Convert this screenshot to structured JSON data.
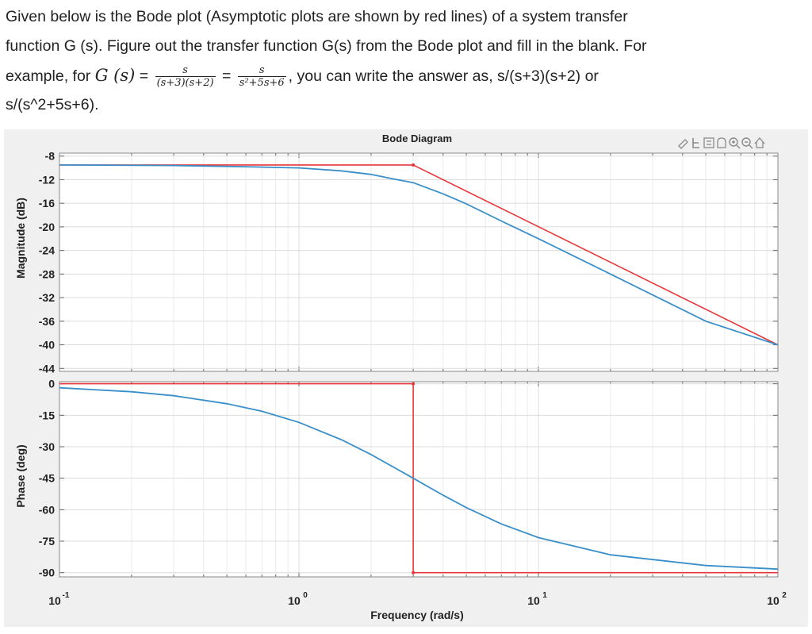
{
  "question": {
    "line1": "Given below is the Bode plot (Asymptotic plots are shown by red lines)  of a system transfer",
    "line2": "function G (s). Figure out the transfer function G(s) from the Bode plot and fill in the blank.  For",
    "line3_prefix": "example, for ",
    "math_G": "G (s)",
    "math_eq": "=",
    "frac1_num": "s",
    "frac1_den": "(s+3)(s+2)",
    "frac2_num": "s",
    "frac2_den": "s²+5s+6",
    "line3_suffix": ", you can write the answer as, s/(s+3)(s+2) or",
    "line4": "s/(s^2+5s+6)."
  },
  "chart_data": {
    "type": "line",
    "title": "Bode Diagram",
    "xlabel": "Frequency (rad/s)",
    "xscale": "log",
    "xlim": [
      0.1,
      100
    ],
    "x_ticks": [
      {
        "base": "10",
        "exp": "-1",
        "value": 0.1
      },
      {
        "base": "10",
        "exp": "0",
        "value": 1
      },
      {
        "base": "10",
        "exp": "1",
        "value": 10
      },
      {
        "base": "10",
        "exp": "2",
        "value": 100
      }
    ],
    "grid": true,
    "toolbar_icons": [
      "brush-icon",
      "data-cursor-icon",
      "legend-icon",
      "pan-icon",
      "zoom-in-icon",
      "zoom-out-icon",
      "home-icon"
    ],
    "magnitude": {
      "ylabel": "Magnitude (dB)",
      "ylim": [
        -44.5,
        -7.5
      ],
      "yticks": [
        "-8",
        "-12",
        "-16",
        "-20",
        "-24",
        "-28",
        "-32",
        "-36",
        "-40",
        "-44"
      ],
      "ytick_values": [
        -8,
        -12,
        -16,
        -20,
        -24,
        -28,
        -32,
        -36,
        -40,
        -44
      ],
      "series": [
        {
          "color": "#e8363a",
          "x": [
            0.1,
            3,
            100
          ],
          "y": [
            -9.5,
            -9.5,
            -40
          ]
        },
        {
          "color": "#3a8fc9",
          "x": [
            0.1,
            0.3,
            0.6,
            1,
            1.5,
            2,
            2.5,
            3,
            4,
            5,
            7,
            10,
            20,
            50,
            100
          ],
          "y": [
            -9.5,
            -9.6,
            -9.8,
            -10.0,
            -10.5,
            -11.1,
            -11.9,
            -12.5,
            -14.4,
            -16.1,
            -19.0,
            -22.0,
            -28.0,
            -36.0,
            -40.0
          ]
        }
      ]
    },
    "phase": {
      "ylabel": "Phase (deg)",
      "ylim": [
        -92,
        1
      ],
      "yticks": [
        "0",
        "-15",
        "-30",
        "-45",
        "-60",
        "-75",
        "-90"
      ],
      "ytick_values": [
        0,
        -15,
        -30,
        -45,
        -60,
        -75,
        -90
      ],
      "series": [
        {
          "color": "#e8363a",
          "x": [
            0.1,
            3,
            3,
            100
          ],
          "y": [
            0,
            0,
            -90,
            -90
          ]
        },
        {
          "color": "#3a8fc9",
          "x": [
            0.1,
            0.2,
            0.3,
            0.5,
            0.7,
            1,
            1.5,
            2,
            3,
            4,
            5,
            7,
            10,
            20,
            50,
            100
          ],
          "y": [
            -1.9,
            -3.8,
            -5.7,
            -9.5,
            -13.1,
            -18.4,
            -26.6,
            -33.7,
            -45.0,
            -53.1,
            -59.0,
            -66.8,
            -73.3,
            -81.5,
            -86.6,
            -88.3
          ]
        }
      ]
    }
  }
}
